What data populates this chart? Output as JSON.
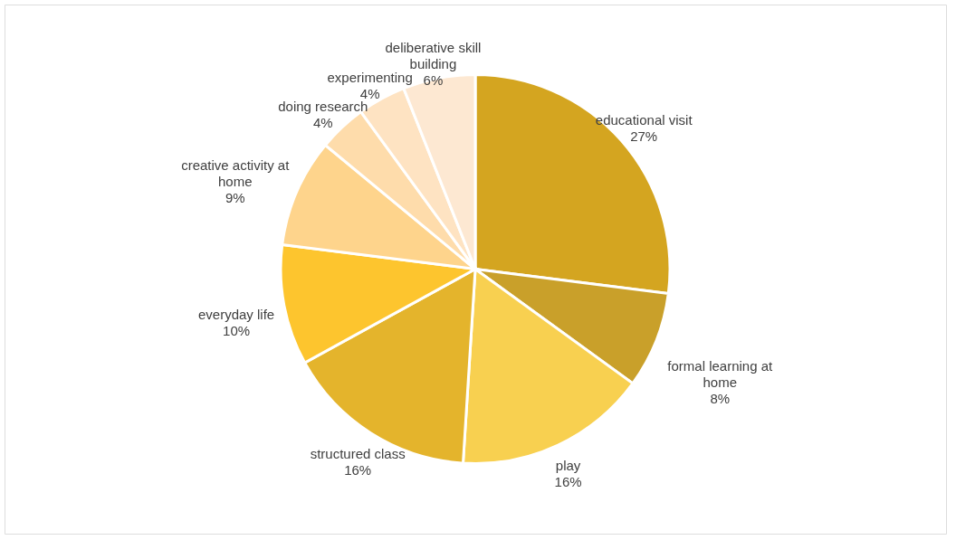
{
  "chart_data": {
    "type": "pie",
    "categories": [
      "educational visit",
      "formal learning at home",
      "play",
      "structured class",
      "everyday life",
      "creative activity at home",
      "doing research",
      "experimenting",
      "deliberative skill building"
    ],
    "values": [
      27,
      8,
      16,
      16,
      10,
      9,
      4,
      4,
      6
    ],
    "value_labels": [
      "27%",
      "8%",
      "16%",
      "16%",
      "10%",
      "9%",
      "4%",
      "4%",
      "6%"
    ],
    "colors": [
      "#d4a520",
      "#c9a02a",
      "#f8d050",
      "#e4b42c",
      "#fdc52e",
      "#fed48c",
      "#fedcab",
      "#fee3c2",
      "#fde8d2"
    ]
  }
}
